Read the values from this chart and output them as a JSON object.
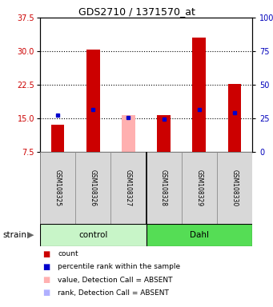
{
  "title": "GDS2710 / 1371570_at",
  "samples": [
    "GSM108325",
    "GSM108326",
    "GSM108327",
    "GSM108328",
    "GSM108329",
    "GSM108330"
  ],
  "groups": [
    "control",
    "control",
    "control",
    "Dahl",
    "Dahl",
    "Dahl"
  ],
  "ylim_left": [
    7.5,
    37.5
  ],
  "ylim_right": [
    0,
    100
  ],
  "yticks_left": [
    7.5,
    15,
    22.5,
    30,
    37.5
  ],
  "yticks_right": [
    0,
    25,
    50,
    75,
    100
  ],
  "hlines": [
    15,
    22.5,
    30
  ],
  "bar_values": [
    13.5,
    30.3,
    15.7,
    15.8,
    33.0,
    22.6
  ],
  "bar_absent": [
    false,
    false,
    true,
    false,
    false,
    false
  ],
  "rank_values": [
    15.7,
    17.0,
    15.2,
    14.8,
    17.0,
    16.2
  ],
  "rank_absent": [
    false,
    false,
    false,
    false,
    false,
    false
  ],
  "bar_color": "#cc0000",
  "bar_absent_color": "#ffb0b0",
  "rank_color": "#0000cc",
  "rank_absent_color": "#b0b0ff",
  "bg_color": "#ffffff",
  "plot_bg": "#ffffff",
  "left_tick_color": "#cc0000",
  "right_tick_color": "#0000bb",
  "group_control_color": "#c8f5c8",
  "group_dahl_color": "#55dd55",
  "bar_bottom": 7.5,
  "bar_width": 0.38
}
